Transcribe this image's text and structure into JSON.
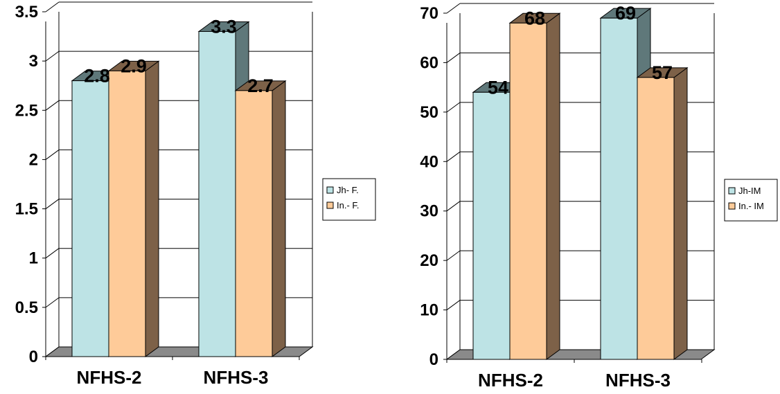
{
  "chart_data": [
    {
      "type": "bar",
      "categories": [
        "NFHS-2",
        "NFHS-3"
      ],
      "series": [
        {
          "name": "Jh- F.",
          "values": [
            2.8,
            3.3
          ]
        },
        {
          "name": "In.- F.",
          "values": [
            2.9,
            2.7
          ]
        }
      ],
      "ylim": [
        0,
        3.5
      ],
      "yticks": [
        "0",
        "0.5",
        "1",
        "1.5",
        "2",
        "2.5",
        "3",
        "3.5"
      ],
      "grid": true,
      "legend": "right",
      "three_d": true
    },
    {
      "type": "bar",
      "categories": [
        "NFHS-2",
        "NFHS-3"
      ],
      "series": [
        {
          "name": "Jh-IM",
          "values": [
            54,
            69
          ]
        },
        {
          "name": "In.- IM",
          "values": [
            68,
            57
          ]
        }
      ],
      "ylim": [
        0,
        70
      ],
      "yticks": [
        "0",
        "10",
        "20",
        "30",
        "40",
        "50",
        "60",
        "70"
      ],
      "grid": true,
      "legend": "right",
      "three_d": true
    }
  ],
  "colors": {
    "series1_front": "#bde3e5",
    "series1_side": "#5f787a",
    "series2_front": "#fecb99",
    "series2_side": "#7d6148",
    "floor": "#8a8a8a"
  }
}
